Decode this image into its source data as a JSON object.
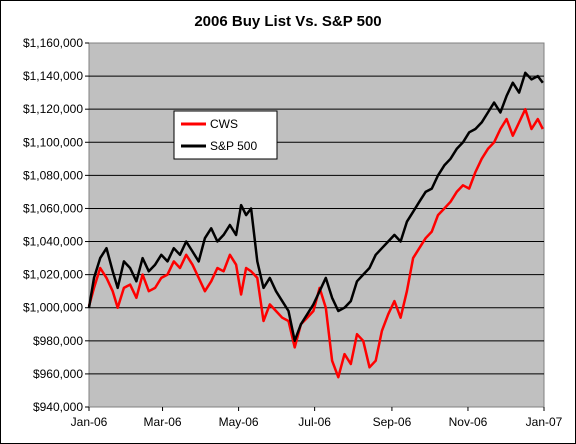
{
  "chart_data": {
    "type": "line",
    "title": "2006 Buy List Vs. S&P 500",
    "xlabel": "",
    "ylabel": "",
    "x_ticks": [
      "Jan-06",
      "Mar-06",
      "May-06",
      "Jul-06",
      "Sep-06",
      "Nov-06",
      "Jan-07"
    ],
    "y_ticks": [
      "$940,000",
      "$960,000",
      "$980,000",
      "$1,000,000",
      "$1,020,000",
      "$1,040,000",
      "$1,060,000",
      "$1,080,000",
      "$1,100,000",
      "$1,120,000",
      "$1,140,000",
      "$1,160,000"
    ],
    "ylim": [
      940000,
      1160000
    ],
    "xlim": [
      "2006-01-01",
      "2007-01-01"
    ],
    "plot_background": "#c0c0c0",
    "grid": "horizontal",
    "legend_placement": "upper-left-center",
    "series": [
      {
        "name": "CWS",
        "color": "#ff0000",
        "points": [
          [
            "2006-01-01",
            1001000
          ],
          [
            "2006-01-05",
            1012000
          ],
          [
            "2006-01-10",
            1024000
          ],
          [
            "2006-01-15",
            1018000
          ],
          [
            "2006-01-20",
            1010000
          ],
          [
            "2006-01-24",
            1000000
          ],
          [
            "2006-01-29",
            1012000
          ],
          [
            "2006-02-03",
            1014000
          ],
          [
            "2006-02-08",
            1006000
          ],
          [
            "2006-02-13",
            1020000
          ],
          [
            "2006-02-18",
            1010000
          ],
          [
            "2006-02-23",
            1012000
          ],
          [
            "2006-02-28",
            1018000
          ],
          [
            "2006-03-05",
            1020000
          ],
          [
            "2006-03-10",
            1028000
          ],
          [
            "2006-03-15",
            1024000
          ],
          [
            "2006-03-20",
            1032000
          ],
          [
            "2006-03-25",
            1026000
          ],
          [
            "2006-03-30",
            1018000
          ],
          [
            "2006-04-04",
            1010000
          ],
          [
            "2006-04-09",
            1016000
          ],
          [
            "2006-04-14",
            1024000
          ],
          [
            "2006-04-19",
            1022000
          ],
          [
            "2006-04-24",
            1032000
          ],
          [
            "2006-04-29",
            1026000
          ],
          [
            "2006-05-03",
            1008000
          ],
          [
            "2006-05-07",
            1024000
          ],
          [
            "2006-05-11",
            1022000
          ],
          [
            "2006-05-16",
            1018000
          ],
          [
            "2006-05-21",
            992000
          ],
          [
            "2006-05-26",
            1002000
          ],
          [
            "2006-05-31",
            998000
          ],
          [
            "2006-06-05",
            994000
          ],
          [
            "2006-06-10",
            992000
          ],
          [
            "2006-06-15",
            976000
          ],
          [
            "2006-06-20",
            990000
          ],
          [
            "2006-06-25",
            994000
          ],
          [
            "2006-06-30",
            998000
          ],
          [
            "2006-07-05",
            1012000
          ],
          [
            "2006-07-10",
            1000000
          ],
          [
            "2006-07-15",
            968000
          ],
          [
            "2006-07-20",
            958000
          ],
          [
            "2006-07-25",
            972000
          ],
          [
            "2006-07-30",
            966000
          ],
          [
            "2006-08-04",
            984000
          ],
          [
            "2006-08-09",
            980000
          ],
          [
            "2006-08-14",
            964000
          ],
          [
            "2006-08-19",
            968000
          ],
          [
            "2006-08-24",
            986000
          ],
          [
            "2006-08-29",
            996000
          ],
          [
            "2006-09-03",
            1004000
          ],
          [
            "2006-09-08",
            994000
          ],
          [
            "2006-09-13",
            1010000
          ],
          [
            "2006-09-18",
            1030000
          ],
          [
            "2006-09-23",
            1036000
          ],
          [
            "2006-09-28",
            1042000
          ],
          [
            "2006-10-03",
            1046000
          ],
          [
            "2006-10-08",
            1056000
          ],
          [
            "2006-10-13",
            1060000
          ],
          [
            "2006-10-18",
            1064000
          ],
          [
            "2006-10-23",
            1070000
          ],
          [
            "2006-10-28",
            1074000
          ],
          [
            "2006-11-02",
            1072000
          ],
          [
            "2006-11-07",
            1082000
          ],
          [
            "2006-11-12",
            1090000
          ],
          [
            "2006-11-17",
            1096000
          ],
          [
            "2006-11-22",
            1100000
          ],
          [
            "2006-11-27",
            1108000
          ],
          [
            "2006-12-02",
            1114000
          ],
          [
            "2006-12-07",
            1104000
          ],
          [
            "2006-12-12",
            1112000
          ],
          [
            "2006-12-17",
            1120000
          ],
          [
            "2006-12-22",
            1108000
          ],
          [
            "2006-12-27",
            1114000
          ],
          [
            "2006-12-31",
            1108000
          ]
        ]
      },
      {
        "name": "S&P 500",
        "color": "#000000",
        "points": [
          [
            "2006-01-01",
            1000000
          ],
          [
            "2006-01-05",
            1018000
          ],
          [
            "2006-01-10",
            1030000
          ],
          [
            "2006-01-15",
            1036000
          ],
          [
            "2006-01-20",
            1022000
          ],
          [
            "2006-01-24",
            1012000
          ],
          [
            "2006-01-29",
            1028000
          ],
          [
            "2006-02-03",
            1024000
          ],
          [
            "2006-02-08",
            1016000
          ],
          [
            "2006-02-13",
            1030000
          ],
          [
            "2006-02-18",
            1022000
          ],
          [
            "2006-02-23",
            1026000
          ],
          [
            "2006-02-28",
            1032000
          ],
          [
            "2006-03-05",
            1028000
          ],
          [
            "2006-03-10",
            1036000
          ],
          [
            "2006-03-15",
            1032000
          ],
          [
            "2006-03-20",
            1040000
          ],
          [
            "2006-03-25",
            1034000
          ],
          [
            "2006-03-30",
            1028000
          ],
          [
            "2006-04-04",
            1042000
          ],
          [
            "2006-04-09",
            1048000
          ],
          [
            "2006-04-14",
            1040000
          ],
          [
            "2006-04-19",
            1044000
          ],
          [
            "2006-04-24",
            1050000
          ],
          [
            "2006-04-29",
            1044000
          ],
          [
            "2006-05-03",
            1062000
          ],
          [
            "2006-05-07",
            1056000
          ],
          [
            "2006-05-11",
            1060000
          ],
          [
            "2006-05-16",
            1028000
          ],
          [
            "2006-05-21",
            1012000
          ],
          [
            "2006-05-26",
            1018000
          ],
          [
            "2006-05-31",
            1010000
          ],
          [
            "2006-06-05",
            1004000
          ],
          [
            "2006-06-10",
            998000
          ],
          [
            "2006-06-15",
            980000
          ],
          [
            "2006-06-20",
            990000
          ],
          [
            "2006-06-25",
            996000
          ],
          [
            "2006-06-30",
            1002000
          ],
          [
            "2006-07-05",
            1010000
          ],
          [
            "2006-07-10",
            1018000
          ],
          [
            "2006-07-15",
            1006000
          ],
          [
            "2006-07-20",
            998000
          ],
          [
            "2006-07-25",
            1000000
          ],
          [
            "2006-07-30",
            1004000
          ],
          [
            "2006-08-04",
            1016000
          ],
          [
            "2006-08-09",
            1020000
          ],
          [
            "2006-08-14",
            1024000
          ],
          [
            "2006-08-19",
            1032000
          ],
          [
            "2006-08-24",
            1036000
          ],
          [
            "2006-08-29",
            1040000
          ],
          [
            "2006-09-03",
            1044000
          ],
          [
            "2006-09-08",
            1040000
          ],
          [
            "2006-09-13",
            1052000
          ],
          [
            "2006-09-18",
            1058000
          ],
          [
            "2006-09-23",
            1064000
          ],
          [
            "2006-09-28",
            1070000
          ],
          [
            "2006-10-03",
            1072000
          ],
          [
            "2006-10-08",
            1080000
          ],
          [
            "2006-10-13",
            1086000
          ],
          [
            "2006-10-18",
            1090000
          ],
          [
            "2006-10-23",
            1096000
          ],
          [
            "2006-10-28",
            1100000
          ],
          [
            "2006-11-02",
            1106000
          ],
          [
            "2006-11-07",
            1108000
          ],
          [
            "2006-11-12",
            1112000
          ],
          [
            "2006-11-17",
            1118000
          ],
          [
            "2006-11-22",
            1124000
          ],
          [
            "2006-11-27",
            1118000
          ],
          [
            "2006-12-02",
            1128000
          ],
          [
            "2006-12-07",
            1136000
          ],
          [
            "2006-12-12",
            1130000
          ],
          [
            "2006-12-17",
            1142000
          ],
          [
            "2006-12-22",
            1138000
          ],
          [
            "2006-12-27",
            1140000
          ],
          [
            "2006-12-31",
            1136000
          ]
        ]
      }
    ]
  }
}
